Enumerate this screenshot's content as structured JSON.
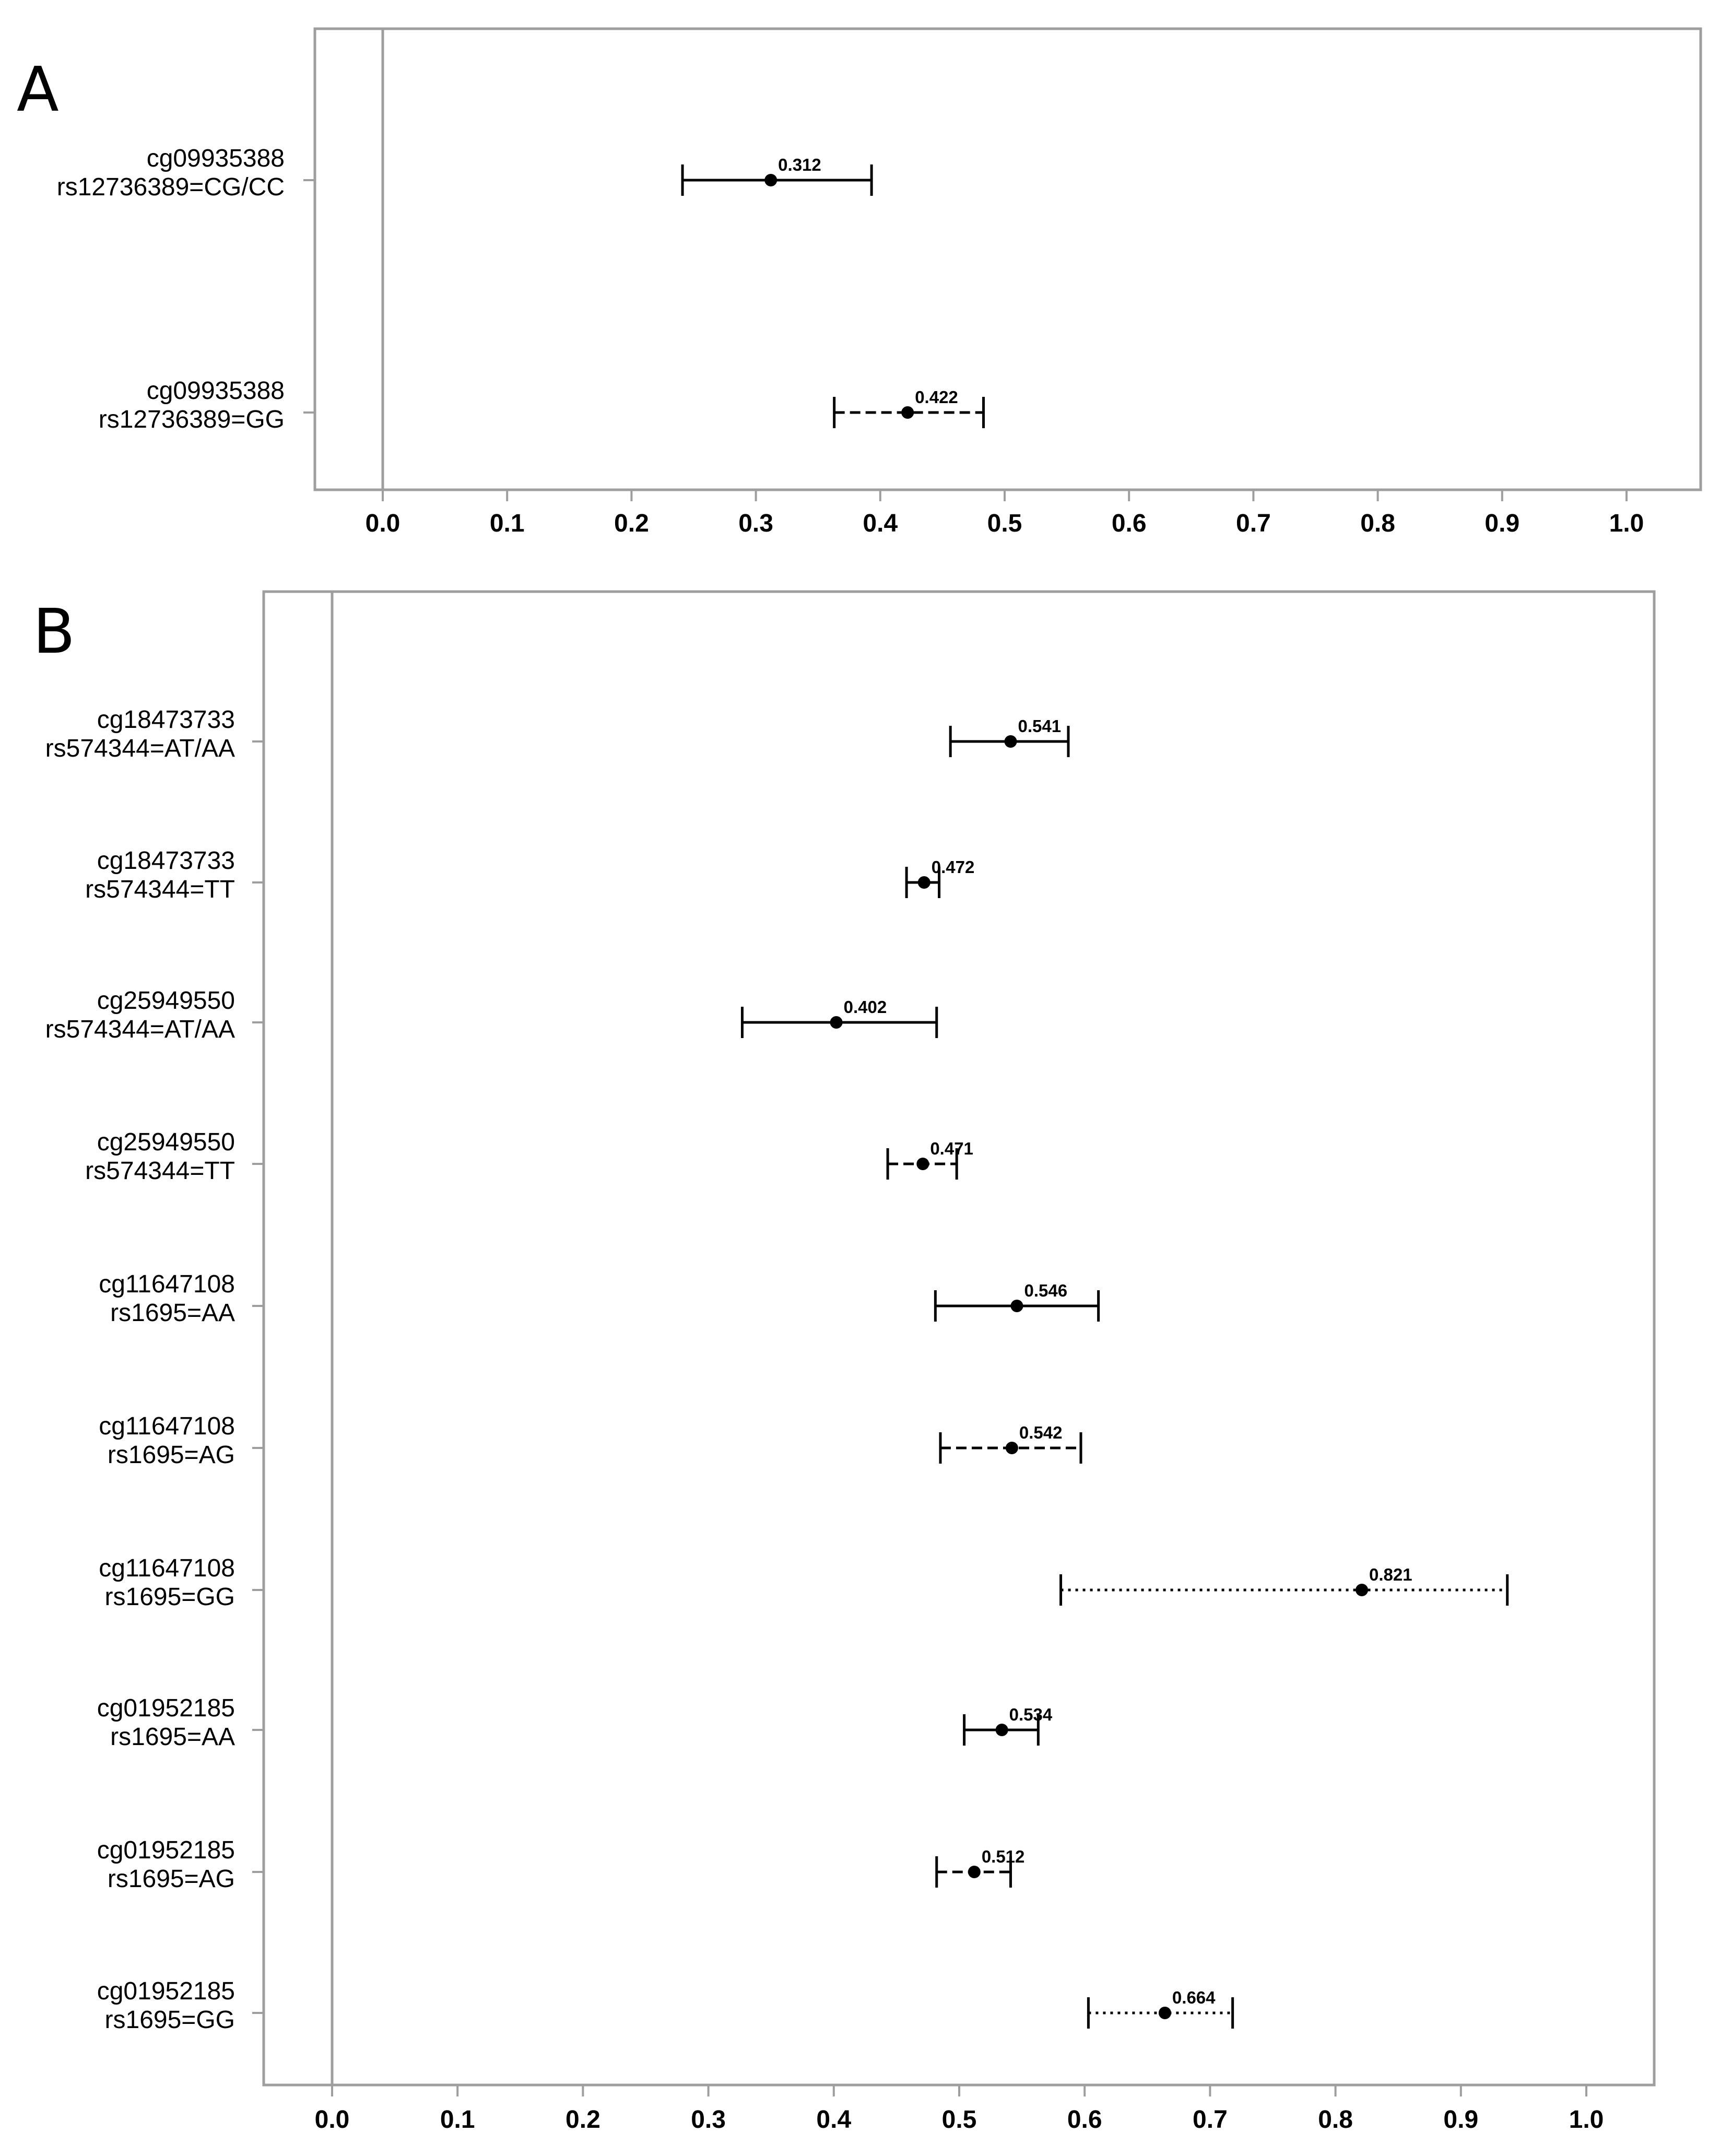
{
  "chart_data": [
    {
      "panel": "A",
      "type": "forest",
      "x_ticks": [
        "0.0",
        "0.1",
        "0.2",
        "0.3",
        "0.4",
        "0.5",
        "0.6",
        "0.7",
        "0.8",
        "0.9",
        "1.0"
      ],
      "xlim": [
        0,
        1
      ],
      "rows": [
        {
          "cpg": "cg09935388",
          "genotype": "rs12736389=CG/CC",
          "estimate": 0.312,
          "label": "0.312",
          "ci": [
            0.241,
            0.393
          ],
          "line_style": "solid"
        },
        {
          "cpg": "cg09935388",
          "genotype": "rs12736389=GG",
          "estimate": 0.422,
          "label": "0.422",
          "ci": [
            0.363,
            0.483
          ],
          "line_style": "dashed"
        }
      ]
    },
    {
      "panel": "B",
      "type": "forest",
      "x_ticks": [
        "0.0",
        "0.1",
        "0.2",
        "0.3",
        "0.4",
        "0.5",
        "0.6",
        "0.7",
        "0.8",
        "0.9",
        "1.0"
      ],
      "xlim": [
        0,
        1
      ],
      "rows": [
        {
          "cpg": "cg18473733",
          "genotype": "rs574344=AT/AA",
          "estimate": 0.541,
          "label": "0.541",
          "ci": [
            0.493,
            0.587
          ],
          "line_style": "solid"
        },
        {
          "cpg": "cg18473733",
          "genotype": "rs574344=TT",
          "estimate": 0.472,
          "label": "0.472",
          "ci": [
            0.458,
            0.484
          ],
          "line_style": "solid"
        },
        {
          "cpg": "cg25949550",
          "genotype": "rs574344=AT/AA",
          "estimate": 0.402,
          "label": "0.402",
          "ci": [
            0.327,
            0.482
          ],
          "line_style": "solid"
        },
        {
          "cpg": "cg25949550",
          "genotype": "rs574344=TT",
          "estimate": 0.471,
          "label": "0.471",
          "ci": [
            0.443,
            0.498
          ],
          "line_style": "dashed"
        },
        {
          "cpg": "cg11647108",
          "genotype": "rs1695=AA",
          "estimate": 0.546,
          "label": "0.546",
          "ci": [
            0.481,
            0.611
          ],
          "line_style": "solid"
        },
        {
          "cpg": "cg11647108",
          "genotype": "rs1695=AG",
          "estimate": 0.542,
          "label": "0.542",
          "ci": [
            0.485,
            0.597
          ],
          "line_style": "dashed"
        },
        {
          "cpg": "cg11647108",
          "genotype": "rs1695=GG",
          "estimate": 0.821,
          "label": "0.821",
          "ci": [
            0.581,
            0.937
          ],
          "line_style": "dotted"
        },
        {
          "cpg": "cg01952185",
          "genotype": "rs1695=AA",
          "estimate": 0.534,
          "label": "0.534",
          "ci": [
            0.504,
            0.563
          ],
          "line_style": "solid"
        },
        {
          "cpg": "cg01952185",
          "genotype": "rs1695=AG",
          "estimate": 0.512,
          "label": "0.512",
          "ci": [
            0.482,
            0.541
          ],
          "line_style": "dashed"
        },
        {
          "cpg": "cg01952185",
          "genotype": "rs1695=GG",
          "estimate": 0.664,
          "label": "0.664",
          "ci": [
            0.603,
            0.718
          ],
          "line_style": "dotted"
        }
      ]
    }
  ]
}
